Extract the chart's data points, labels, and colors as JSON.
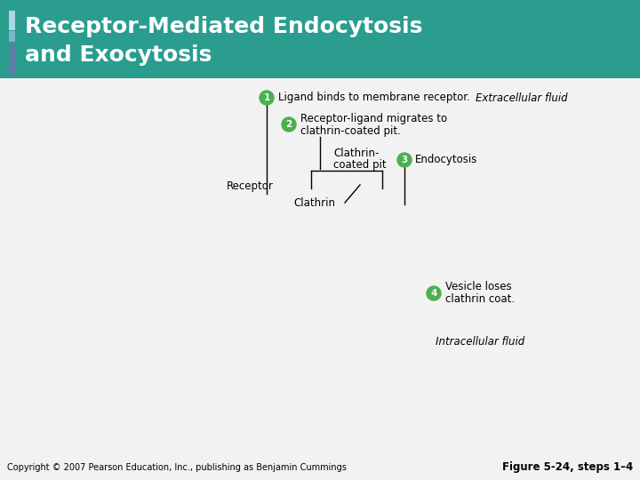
{
  "title_line1": "Receptor-Mediated Endocytosis",
  "title_line2": "and Exocytosis",
  "title_bg_color": "#2a9d8f",
  "title_text_color": "#ffffff",
  "sidebar_dark_color": "#5b7fa6",
  "sidebar_mid_color": "#7ab8c8",
  "sidebar_light_color": "#a8d8e8",
  "step_badge_color": "#4caf50",
  "step1_text": "Ligand binds to membrane receptor.",
  "step1_italic": "Extracellular fluid",
  "step2_line1": "Receptor-ligand migrates to",
  "step2_line2": "clathrin-coated pit.",
  "clathrin_pit_line1": "Clathrin-",
  "clathrin_pit_line2": "coated pit",
  "step3_text": "Endocytosis",
  "receptor_label": "Receptor",
  "clathrin_label": "Clathrin",
  "step4_line1": "Vesicle loses",
  "step4_line2": "clathrin coat.",
  "intracellular_text": "Intracellular fluid",
  "copyright_text": "Copyright © 2007 Pearson Education, Inc., publishing as Benjamin Cummings",
  "figure_text": "Figure 5-24, steps 1–4",
  "bg_color": "#f2f2f2"
}
